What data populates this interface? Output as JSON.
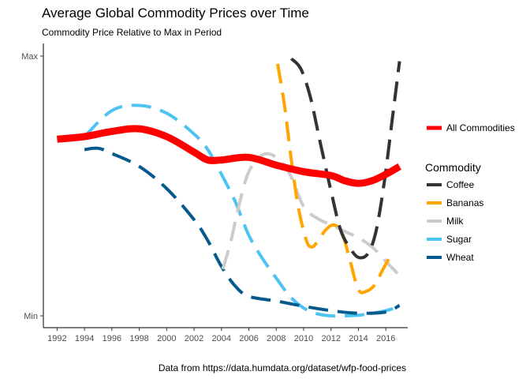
{
  "title": "Average Global Commodity Prices over Time",
  "subtitle": "Commodity Price Relative to Max in Period",
  "caption": "Data from https://data.humdata.org/dataset/wfp-food-prices",
  "chart_data": {
    "type": "line",
    "x_ticks": [
      1992,
      1994,
      1996,
      1998,
      2000,
      2002,
      2004,
      2006,
      2008,
      2010,
      2012,
      2014,
      2016
    ],
    "xlim": [
      1991,
      2017.6
    ],
    "y_tick_labels": [
      "Min",
      "Max"
    ],
    "ylim": [
      0,
      1
    ],
    "grid": false,
    "legend_placement": "right",
    "overall_legend_label": "All Commodities",
    "commodity_legend_title": "Commodity",
    "series": [
      {
        "name": "All Commodities",
        "color": "#ff0000",
        "dashed": false,
        "points": [
          [
            1992,
            0.68
          ],
          [
            1994,
            0.69
          ],
          [
            1996,
            0.71
          ],
          [
            1998,
            0.72
          ],
          [
            2000,
            0.69
          ],
          [
            2002,
            0.63
          ],
          [
            2003,
            0.6
          ],
          [
            2004,
            0.6
          ],
          [
            2006,
            0.61
          ],
          [
            2008,
            0.58
          ],
          [
            2010,
            0.555
          ],
          [
            2012,
            0.54
          ],
          [
            2013,
            0.52
          ],
          [
            2014,
            0.51
          ],
          [
            2015,
            0.52
          ],
          [
            2016,
            0.545
          ],
          [
            2017,
            0.575
          ]
        ]
      },
      {
        "name": "Coffee",
        "color": "#333333",
        "dashed": true,
        "points": [
          [
            2009.1,
            0.99
          ],
          [
            2009.8,
            0.95
          ],
          [
            2010.5,
            0.84
          ],
          [
            2011.2,
            0.67
          ],
          [
            2012,
            0.48
          ],
          [
            2012.7,
            0.33
          ],
          [
            2013.4,
            0.26
          ],
          [
            2014,
            0.225
          ],
          [
            2014.7,
            0.24
          ],
          [
            2015.3,
            0.33
          ],
          [
            2015.9,
            0.52
          ],
          [
            2016.5,
            0.77
          ],
          [
            2017,
            0.98
          ]
        ]
      },
      {
        "name": "Bananas",
        "color": "#ffa500",
        "dashed": true,
        "points": [
          [
            2008.1,
            0.97
          ],
          [
            2008.6,
            0.81
          ],
          [
            2009.1,
            0.6
          ],
          [
            2009.6,
            0.42
          ],
          [
            2010.2,
            0.29
          ],
          [
            2010.6,
            0.265
          ],
          [
            2011,
            0.285
          ],
          [
            2011.6,
            0.33
          ],
          [
            2012.2,
            0.35
          ],
          [
            2012.8,
            0.32
          ],
          [
            2013.4,
            0.21
          ],
          [
            2014,
            0.1
          ],
          [
            2014.6,
            0.095
          ],
          [
            2015.2,
            0.12
          ],
          [
            2015.8,
            0.18
          ],
          [
            2016.5,
            0.245
          ]
        ]
      },
      {
        "name": "Milk",
        "color": "#cccccc",
        "dashed": true,
        "points": [
          [
            2004.1,
            0.18
          ],
          [
            2004.7,
            0.29
          ],
          [
            2005.3,
            0.43
          ],
          [
            2006,
            0.555
          ],
          [
            2007,
            0.62
          ],
          [
            2008,
            0.61
          ],
          [
            2009,
            0.545
          ],
          [
            2010,
            0.42
          ],
          [
            2011,
            0.375
          ],
          [
            2012,
            0.35
          ],
          [
            2013,
            0.325
          ],
          [
            2014,
            0.3
          ],
          [
            2015,
            0.265
          ],
          [
            2016,
            0.21
          ],
          [
            2017,
            0.155
          ]
        ]
      },
      {
        "name": "Sugar",
        "color": "#4dc3f2",
        "dashed": true,
        "points": [
          [
            1994,
            0.69
          ],
          [
            1996,
            0.79
          ],
          [
            1998,
            0.81
          ],
          [
            2000,
            0.78
          ],
          [
            2002,
            0.7
          ],
          [
            2003,
            0.64
          ],
          [
            2004,
            0.545
          ],
          [
            2005,
            0.44
          ],
          [
            2006,
            0.31
          ],
          [
            2007,
            0.22
          ],
          [
            2008,
            0.145
          ],
          [
            2009,
            0.075
          ],
          [
            2010,
            0.03
          ],
          [
            2011,
            0.008
          ],
          [
            2012,
            0.0
          ],
          [
            2013,
            0.0
          ],
          [
            2014,
            0.002
          ],
          [
            2015,
            0.01
          ],
          [
            2016,
            0.02
          ],
          [
            2017,
            0.035
          ]
        ]
      },
      {
        "name": "Wheat",
        "color": "#045a8d",
        "dashed": true,
        "points": [
          [
            1994,
            0.64
          ],
          [
            1995,
            0.645
          ],
          [
            1996,
            0.625
          ],
          [
            1998,
            0.575
          ],
          [
            2000,
            0.49
          ],
          [
            2002,
            0.37
          ],
          [
            2003,
            0.29
          ],
          [
            2004,
            0.19
          ],
          [
            2005,
            0.115
          ],
          [
            2006,
            0.075
          ],
          [
            2008,
            0.057
          ],
          [
            2010,
            0.037
          ],
          [
            2012,
            0.02
          ],
          [
            2014,
            0.01
          ],
          [
            2016,
            0.015
          ],
          [
            2017,
            0.04
          ]
        ]
      }
    ]
  }
}
